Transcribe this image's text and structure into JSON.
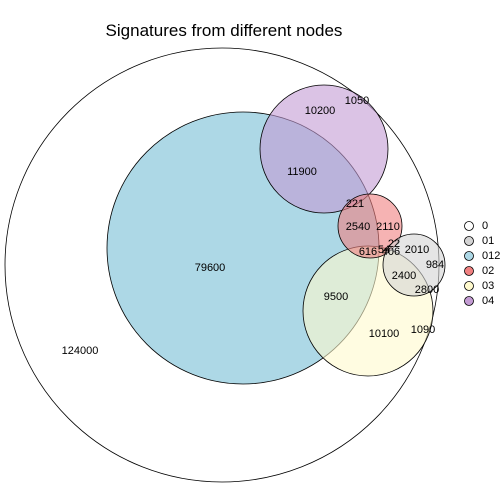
{
  "chart_data": {
    "type": "euler",
    "title": "Signatures from different nodes",
    "sets": [
      {
        "name": "0",
        "color": "#ffffff"
      },
      {
        "name": "01",
        "color": "#d3d3d3"
      },
      {
        "name": "012",
        "color": "#add8e6"
      },
      {
        "name": "02",
        "color": "#f08080"
      },
      {
        "name": "03",
        "color": "#fffacd"
      },
      {
        "name": "04",
        "color": "#c39bd3"
      }
    ],
    "region_labels": [
      {
        "value": "124000"
      },
      {
        "value": "79600"
      },
      {
        "value": "11900"
      },
      {
        "value": "10200"
      },
      {
        "value": "1050"
      },
      {
        "value": "221"
      },
      {
        "value": "2540"
      },
      {
        "value": "2110"
      },
      {
        "value": "9500"
      },
      {
        "value": "10100"
      },
      {
        "value": "1090"
      },
      {
        "value": "2010"
      },
      {
        "value": "984"
      },
      {
        "value": "2400"
      },
      {
        "value": "2800"
      },
      {
        "value": "22"
      },
      {
        "value": "616"
      },
      {
        "value": "54"
      },
      {
        "value": "406"
      }
    ],
    "legend_position": "right"
  }
}
